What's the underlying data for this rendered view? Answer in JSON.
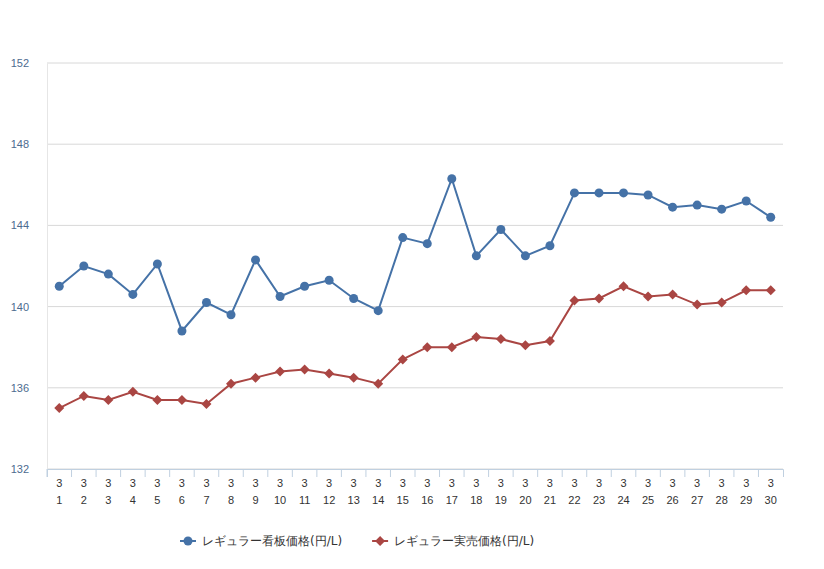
{
  "chart_data": {
    "type": "line",
    "categories": [
      "3\n1",
      "3\n2",
      "3\n3",
      "3\n4",
      "3\n5",
      "3\n6",
      "3\n7",
      "3\n8",
      "3\n9",
      "3\n10",
      "3\n11",
      "3\n12",
      "3\n13",
      "3\n14",
      "3\n15",
      "3\n16",
      "3\n17",
      "3\n18",
      "3\n19",
      "3\n20",
      "3\n21",
      "3\n22",
      "3\n23",
      "3\n24",
      "3\n25",
      "3\n26",
      "3\n27",
      "3\n28",
      "3\n29",
      "3\n30"
    ],
    "series": [
      {
        "name": "レギュラー看板価格(円/L)",
        "color": "#4572a7",
        "marker": "circle",
        "values": [
          141.0,
          142.0,
          141.6,
          140.6,
          142.1,
          138.8,
          140.2,
          139.6,
          142.3,
          140.5,
          141.0,
          141.3,
          140.4,
          139.8,
          143.4,
          143.1,
          146.3,
          142.5,
          143.8,
          142.5,
          143.0,
          145.6,
          145.6,
          145.6,
          145.5,
          144.9,
          145.0,
          144.8,
          145.2,
          144.4
        ]
      },
      {
        "name": "レギュラー実売価格(円/L)",
        "color": "#aa4643",
        "marker": "diamond",
        "values": [
          135.0,
          135.6,
          135.4,
          135.8,
          135.4,
          135.4,
          135.2,
          136.2,
          136.5,
          136.8,
          136.9,
          136.7,
          136.5,
          136.2,
          137.4,
          138.0,
          138.0,
          138.5,
          138.4,
          138.1,
          138.3,
          140.3,
          140.4,
          141.0,
          140.5,
          140.6,
          140.1,
          140.2,
          140.8,
          140.8
        ]
      }
    ],
    "ylim": [
      132,
      152
    ],
    "yticks": [
      132,
      136,
      140,
      144,
      148,
      152
    ],
    "grid": true,
    "legend": "bottom"
  }
}
